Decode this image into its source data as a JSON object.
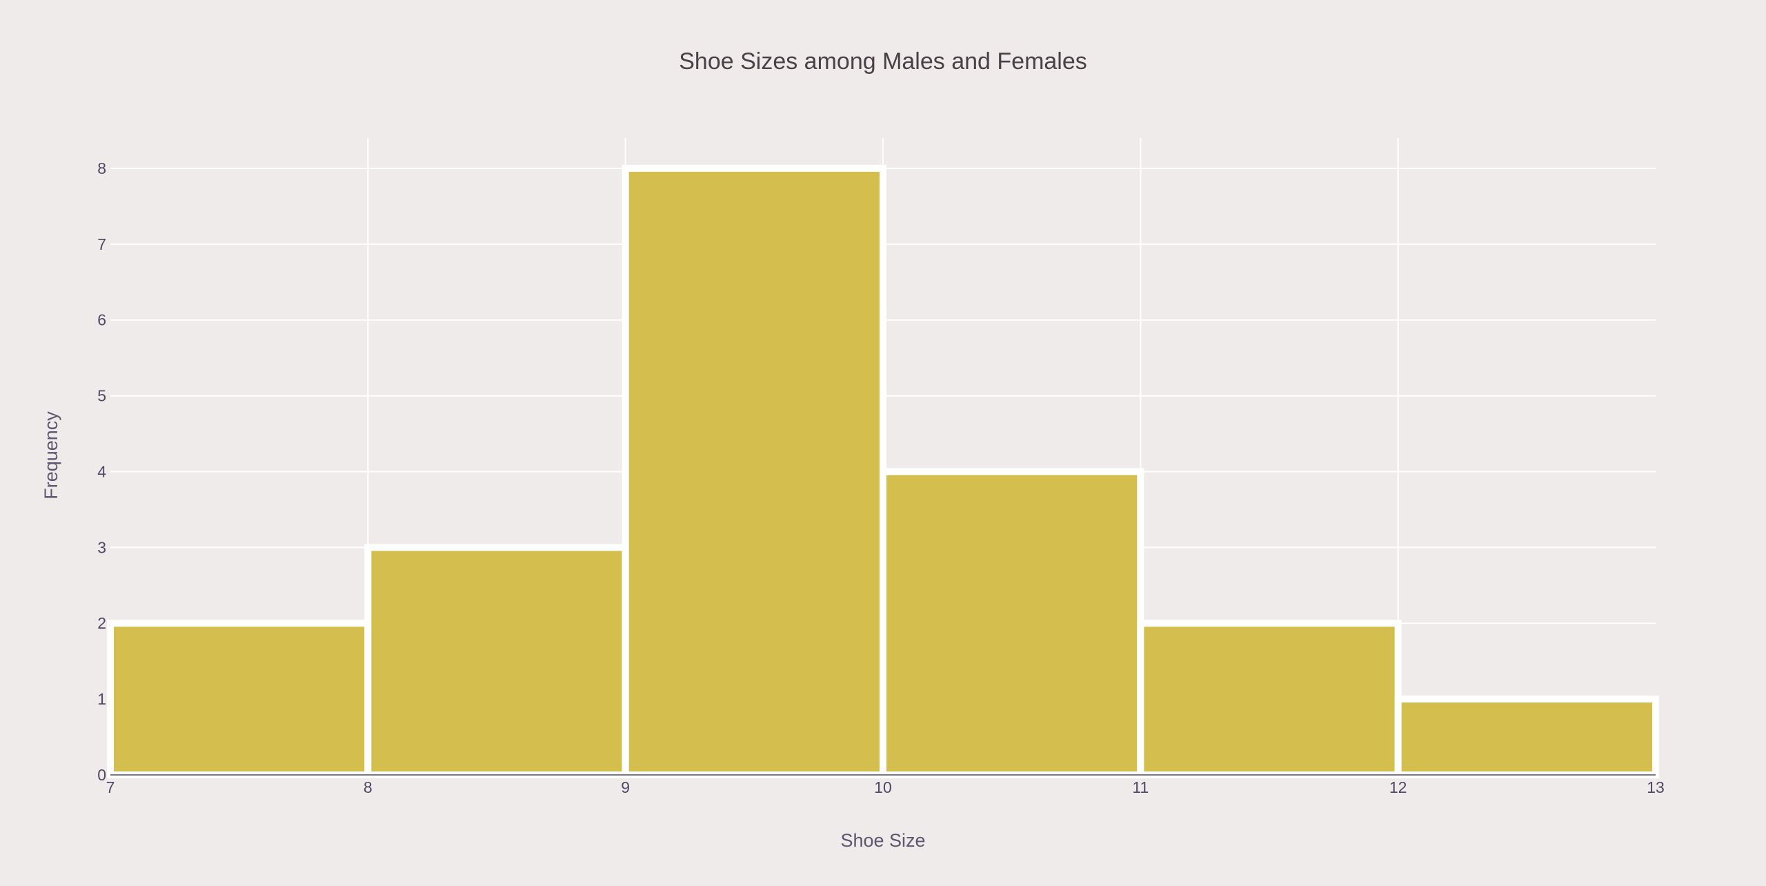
{
  "chart_data": {
    "type": "bar",
    "title": "Shoe Sizes among Males and Females",
    "xlabel": "Shoe Size",
    "ylabel": "Frequency",
    "bins": [
      {
        "start": 7,
        "end": 8,
        "value": 2
      },
      {
        "start": 8,
        "end": 9,
        "value": 3
      },
      {
        "start": 9,
        "end": 10,
        "value": 8
      },
      {
        "start": 10,
        "end": 11,
        "value": 4
      },
      {
        "start": 11,
        "end": 12,
        "value": 2
      },
      {
        "start": 12,
        "end": 13,
        "value": 1
      }
    ],
    "xlim": [
      7,
      13
    ],
    "ylim": [
      0,
      8.4
    ],
    "x_ticks": [
      7,
      8,
      9,
      10,
      11,
      12,
      13
    ],
    "y_ticks": [
      0,
      1,
      2,
      3,
      4,
      5,
      6,
      7,
      8
    ],
    "grid": true,
    "legend": "none",
    "colors": {
      "bar_fill": "#d4bf4e",
      "bar_outline": "#ffffff",
      "background": "#f0ebeb",
      "grid": "#ffffff"
    }
  }
}
